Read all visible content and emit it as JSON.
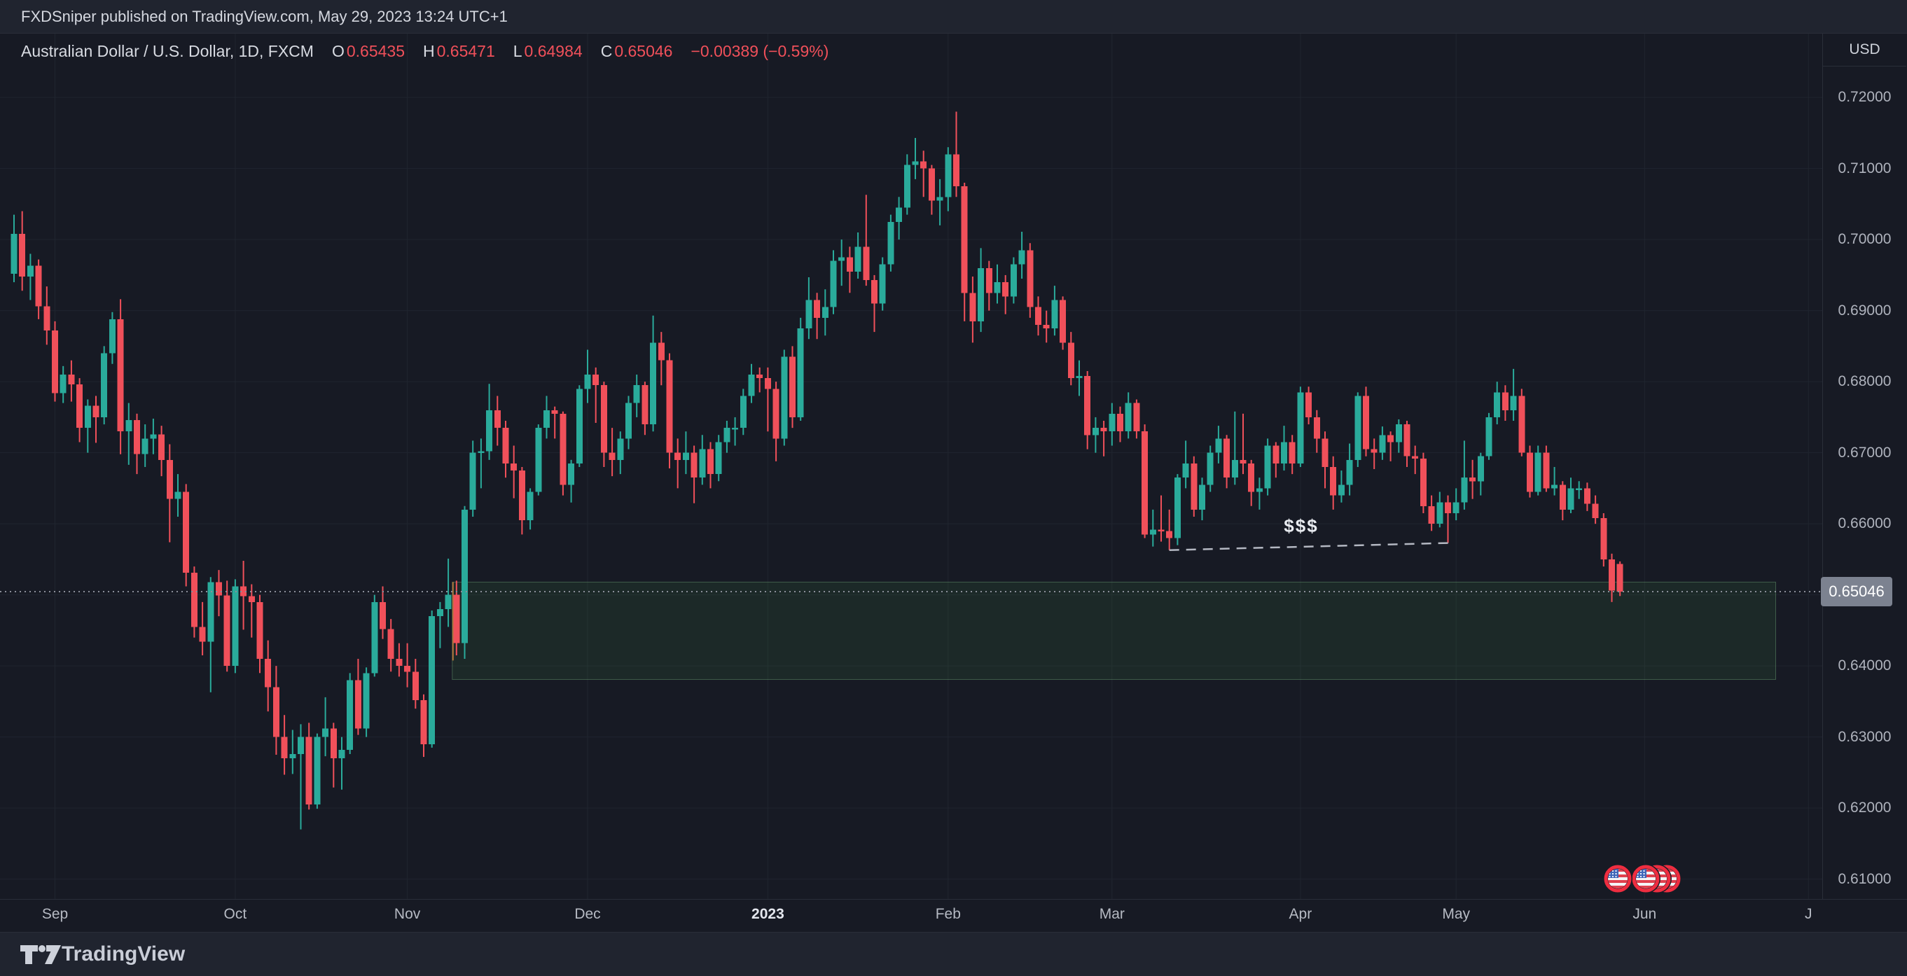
{
  "topbar": {
    "text": "FXDSniper published on TradingView.com, May 29, 2023 13:24 UTC+1"
  },
  "legend": {
    "title": "Australian Dollar / U.S. Dollar, 1D, FXCM",
    "o_label": "O",
    "o_value": "0.65435",
    "h_label": "H",
    "h_value": "0.65471",
    "l_label": "L",
    "l_value": "0.64984",
    "c_label": "C",
    "c_value": "0.65046",
    "change": "−0.00389 (−0.59%)"
  },
  "price_axis": {
    "currency_label": "USD",
    "ticks": [
      "0.72000",
      "0.71000",
      "0.70000",
      "0.69000",
      "0.68000",
      "0.67000",
      "0.66000",
      "0.65000",
      "0.64000",
      "0.63000",
      "0.62000",
      "0.61000"
    ],
    "last_price_label": "0.65046"
  },
  "time_axis": {
    "labels": [
      {
        "label": "Sep",
        "index": 5,
        "bold": false
      },
      {
        "label": "Oct",
        "index": 27,
        "bold": false
      },
      {
        "label": "Nov",
        "index": 48,
        "bold": false
      },
      {
        "label": "Dec",
        "index": 70,
        "bold": false
      },
      {
        "label": "2023",
        "index": 92,
        "bold": true
      },
      {
        "label": "Feb",
        "index": 114,
        "bold": false
      },
      {
        "label": "Mar",
        "index": 134,
        "bold": false
      },
      {
        "label": "Apr",
        "index": 157,
        "bold": false
      },
      {
        "label": "May",
        "index": 176,
        "bold": false
      },
      {
        "label": "Jun",
        "index": 199,
        "bold": false
      },
      {
        "label": "J",
        "index": 219,
        "bold": false
      }
    ]
  },
  "footer": {
    "brand": "TradingView"
  },
  "chart_data": {
    "type": "candlestick",
    "symbol": "Australian Dollar / U.S. Dollar",
    "timeframe": "1D",
    "exchange": "FXCM",
    "visible_range": [
      "Sep 2022",
      "Jun 2023"
    ],
    "ylim": [
      0.607,
      0.729
    ],
    "grid": true,
    "up_color": "#2aab9b",
    "down_color": "#f0505a",
    "price_line": 0.65046,
    "last_bar": {
      "open": 0.65435,
      "high": 0.65471,
      "low": 0.64984,
      "close": 0.65046,
      "change": -0.00389,
      "change_pct": -0.59
    },
    "ohlc": [
      [
        0.6952,
        0.7035,
        0.694,
        0.7008
      ],
      [
        0.7008,
        0.704,
        0.6928,
        0.6948
      ],
      [
        0.6948,
        0.698,
        0.6915,
        0.6963
      ],
      [
        0.6963,
        0.6972,
        0.6888,
        0.6906
      ],
      [
        0.6906,
        0.6934,
        0.6852,
        0.6872
      ],
      [
        0.6872,
        0.6885,
        0.6772,
        0.6784
      ],
      [
        0.6784,
        0.6822,
        0.677,
        0.681
      ],
      [
        0.681,
        0.683,
        0.6772,
        0.6796
      ],
      [
        0.6796,
        0.6805,
        0.6715,
        0.6735
      ],
      [
        0.6735,
        0.6775,
        0.67,
        0.6766
      ],
      [
        0.6766,
        0.678,
        0.6714,
        0.675
      ],
      [
        0.675,
        0.685,
        0.674,
        0.684
      ],
      [
        0.684,
        0.6898,
        0.6825,
        0.6888
      ],
      [
        0.6888,
        0.6916,
        0.6698,
        0.673
      ],
      [
        0.673,
        0.677,
        0.6683,
        0.6746
      ],
      [
        0.6746,
        0.6755,
        0.667,
        0.6698
      ],
      [
        0.6698,
        0.674,
        0.668,
        0.672
      ],
      [
        0.672,
        0.6748,
        0.6698,
        0.6726
      ],
      [
        0.6726,
        0.6738,
        0.6667,
        0.669
      ],
      [
        0.669,
        0.6712,
        0.6574,
        0.6635
      ],
      [
        0.6635,
        0.667,
        0.661,
        0.6645
      ],
      [
        0.6645,
        0.6656,
        0.6512,
        0.6531
      ],
      [
        0.6531,
        0.654,
        0.644,
        0.6455
      ],
      [
        0.6455,
        0.649,
        0.6415,
        0.6434
      ],
      [
        0.6434,
        0.6525,
        0.6363,
        0.6518
      ],
      [
        0.6518,
        0.6535,
        0.647,
        0.6499
      ],
      [
        0.6499,
        0.652,
        0.6392,
        0.64
      ],
      [
        0.64,
        0.6522,
        0.639,
        0.6512
      ],
      [
        0.6512,
        0.6548,
        0.6451,
        0.6498
      ],
      [
        0.6498,
        0.6515,
        0.644,
        0.649
      ],
      [
        0.649,
        0.65,
        0.639,
        0.641
      ],
      [
        0.641,
        0.6436,
        0.6336,
        0.637
      ],
      [
        0.637,
        0.64,
        0.6275,
        0.63
      ],
      [
        0.63,
        0.6331,
        0.6247,
        0.627
      ],
      [
        0.627,
        0.631,
        0.6248,
        0.6276
      ],
      [
        0.6276,
        0.6318,
        0.617,
        0.63
      ],
      [
        0.63,
        0.632,
        0.6198,
        0.6205
      ],
      [
        0.6205,
        0.6305,
        0.6199,
        0.63
      ],
      [
        0.63,
        0.6356,
        0.6273,
        0.6312
      ],
      [
        0.6312,
        0.632,
        0.6229,
        0.627
      ],
      [
        0.627,
        0.63,
        0.6226,
        0.6282
      ],
      [
        0.6282,
        0.639,
        0.6276,
        0.638
      ],
      [
        0.638,
        0.641,
        0.6303,
        0.6312
      ],
      [
        0.6312,
        0.6398,
        0.63,
        0.639
      ],
      [
        0.639,
        0.65,
        0.6385,
        0.649
      ],
      [
        0.649,
        0.6512,
        0.6438,
        0.6452
      ],
      [
        0.6452,
        0.6466,
        0.6392,
        0.641
      ],
      [
        0.641,
        0.6432,
        0.6385,
        0.64
      ],
      [
        0.64,
        0.6432,
        0.637,
        0.6392
      ],
      [
        0.6392,
        0.641,
        0.634,
        0.6352
      ],
      [
        0.6352,
        0.636,
        0.6272,
        0.629
      ],
      [
        0.629,
        0.6478,
        0.6285,
        0.647
      ],
      [
        0.647,
        0.649,
        0.6425,
        0.648
      ],
      [
        0.648,
        0.6551,
        0.6455,
        0.65
      ],
      [
        0.65,
        0.652,
        0.6415,
        0.6432
      ],
      [
        0.6432,
        0.6625,
        0.641,
        0.662
      ],
      [
        0.662,
        0.6717,
        0.661,
        0.67
      ],
      [
        0.67,
        0.672,
        0.665,
        0.6702
      ],
      [
        0.6702,
        0.6797,
        0.669,
        0.676
      ],
      [
        0.676,
        0.678,
        0.671,
        0.6735
      ],
      [
        0.6735,
        0.6745,
        0.6665,
        0.6685
      ],
      [
        0.6685,
        0.671,
        0.6636,
        0.6675
      ],
      [
        0.6675,
        0.668,
        0.6585,
        0.6605
      ],
      [
        0.6605,
        0.665,
        0.6592,
        0.6645
      ],
      [
        0.6645,
        0.674,
        0.664,
        0.6735
      ],
      [
        0.6735,
        0.678,
        0.672,
        0.676
      ],
      [
        0.676,
        0.6765,
        0.672,
        0.6755
      ],
      [
        0.6755,
        0.6758,
        0.664,
        0.6655
      ],
      [
        0.6655,
        0.669,
        0.663,
        0.6685
      ],
      [
        0.6685,
        0.6795,
        0.668,
        0.679
      ],
      [
        0.679,
        0.6845,
        0.677,
        0.681
      ],
      [
        0.681,
        0.682,
        0.6742,
        0.6795
      ],
      [
        0.6795,
        0.68,
        0.668,
        0.67
      ],
      [
        0.67,
        0.6735,
        0.6667,
        0.669
      ],
      [
        0.669,
        0.673,
        0.667,
        0.672
      ],
      [
        0.672,
        0.678,
        0.6705,
        0.677
      ],
      [
        0.677,
        0.681,
        0.675,
        0.6795
      ],
      [
        0.6795,
        0.68,
        0.6725,
        0.674
      ],
      [
        0.674,
        0.6893,
        0.673,
        0.6855
      ],
      [
        0.6855,
        0.687,
        0.6795,
        0.683
      ],
      [
        0.683,
        0.684,
        0.6678,
        0.67
      ],
      [
        0.67,
        0.672,
        0.665,
        0.669
      ],
      [
        0.669,
        0.673,
        0.667,
        0.67
      ],
      [
        0.67,
        0.671,
        0.6629,
        0.6665
      ],
      [
        0.6665,
        0.6725,
        0.6655,
        0.6705
      ],
      [
        0.6705,
        0.6715,
        0.665,
        0.667
      ],
      [
        0.667,
        0.6725,
        0.666,
        0.6715
      ],
      [
        0.6715,
        0.6745,
        0.67,
        0.6735
      ],
      [
        0.6735,
        0.675,
        0.671,
        0.6735
      ],
      [
        0.6735,
        0.679,
        0.6725,
        0.678
      ],
      [
        0.678,
        0.6825,
        0.677,
        0.681
      ],
      [
        0.681,
        0.682,
        0.6785,
        0.6805
      ],
      [
        0.6805,
        0.682,
        0.673,
        0.679
      ],
      [
        0.679,
        0.68,
        0.6688,
        0.672
      ],
      [
        0.672,
        0.6845,
        0.671,
        0.6835
      ],
      [
        0.6835,
        0.685,
        0.6735,
        0.675
      ],
      [
        0.675,
        0.689,
        0.6745,
        0.6875
      ],
      [
        0.6875,
        0.6947,
        0.686,
        0.6915
      ],
      [
        0.6915,
        0.6925,
        0.686,
        0.689
      ],
      [
        0.689,
        0.693,
        0.6865,
        0.6905
      ],
      [
        0.6905,
        0.6985,
        0.6895,
        0.697
      ],
      [
        0.697,
        0.7,
        0.6935,
        0.6975
      ],
      [
        0.6975,
        0.699,
        0.6925,
        0.6955
      ],
      [
        0.6955,
        0.701,
        0.6945,
        0.699
      ],
      [
        0.699,
        0.7063,
        0.6935,
        0.6943
      ],
      [
        0.6943,
        0.695,
        0.687,
        0.691
      ],
      [
        0.691,
        0.6975,
        0.69,
        0.6965
      ],
      [
        0.6965,
        0.7035,
        0.6955,
        0.7025
      ],
      [
        0.7025,
        0.706,
        0.7,
        0.7045
      ],
      [
        0.7045,
        0.712,
        0.7035,
        0.7105
      ],
      [
        0.7105,
        0.7143,
        0.7085,
        0.711
      ],
      [
        0.711,
        0.7125,
        0.706,
        0.71
      ],
      [
        0.71,
        0.7105,
        0.7035,
        0.7055
      ],
      [
        0.7055,
        0.7085,
        0.702,
        0.706
      ],
      [
        0.706,
        0.713,
        0.704,
        0.712
      ],
      [
        0.712,
        0.718,
        0.706,
        0.7075
      ],
      [
        0.7075,
        0.708,
        0.6885,
        0.6925
      ],
      [
        0.6925,
        0.6948,
        0.6855,
        0.6885
      ],
      [
        0.6885,
        0.6988,
        0.687,
        0.696
      ],
      [
        0.696,
        0.697,
        0.69,
        0.6925
      ],
      [
        0.6925,
        0.6965,
        0.691,
        0.694
      ],
      [
        0.694,
        0.695,
        0.6895,
        0.692
      ],
      [
        0.692,
        0.6975,
        0.691,
        0.6965
      ],
      [
        0.6965,
        0.7011,
        0.6945,
        0.6985
      ],
      [
        0.6985,
        0.6995,
        0.689,
        0.6905
      ],
      [
        0.6905,
        0.692,
        0.6865,
        0.688
      ],
      [
        0.688,
        0.69,
        0.6855,
        0.6875
      ],
      [
        0.6875,
        0.6935,
        0.6865,
        0.6915
      ],
      [
        0.6915,
        0.692,
        0.6845,
        0.6855
      ],
      [
        0.6855,
        0.687,
        0.6795,
        0.6805
      ],
      [
        0.6805,
        0.683,
        0.678,
        0.6808
      ],
      [
        0.6808,
        0.6815,
        0.6705,
        0.6725
      ],
      [
        0.6725,
        0.675,
        0.67,
        0.6735
      ],
      [
        0.6735,
        0.6745,
        0.6695,
        0.673
      ],
      [
        0.673,
        0.677,
        0.671,
        0.6755
      ],
      [
        0.6755,
        0.6765,
        0.6715,
        0.673
      ],
      [
        0.673,
        0.6785,
        0.672,
        0.677
      ],
      [
        0.677,
        0.6775,
        0.672,
        0.673
      ],
      [
        0.673,
        0.674,
        0.658,
        0.6585
      ],
      [
        0.6585,
        0.662,
        0.6568,
        0.6592
      ],
      [
        0.6592,
        0.664,
        0.6575,
        0.659
      ],
      [
        0.659,
        0.662,
        0.6563,
        0.658
      ],
      [
        0.658,
        0.667,
        0.657,
        0.6665
      ],
      [
        0.6665,
        0.6717,
        0.665,
        0.6685
      ],
      [
        0.6685,
        0.6695,
        0.661,
        0.662
      ],
      [
        0.662,
        0.6665,
        0.6605,
        0.6655
      ],
      [
        0.6655,
        0.671,
        0.6645,
        0.67
      ],
      [
        0.67,
        0.6738,
        0.6685,
        0.672
      ],
      [
        0.672,
        0.6725,
        0.665,
        0.6665
      ],
      [
        0.6665,
        0.6758,
        0.6655,
        0.669
      ],
      [
        0.669,
        0.6755,
        0.667,
        0.6685
      ],
      [
        0.6685,
        0.669,
        0.6625,
        0.6645
      ],
      [
        0.6645,
        0.6665,
        0.662,
        0.665
      ],
      [
        0.665,
        0.672,
        0.664,
        0.671
      ],
      [
        0.671,
        0.6715,
        0.6665,
        0.6685
      ],
      [
        0.6685,
        0.6738,
        0.6675,
        0.6715
      ],
      [
        0.6715,
        0.6725,
        0.667,
        0.6685
      ],
      [
        0.6685,
        0.6793,
        0.668,
        0.6785
      ],
      [
        0.6785,
        0.6793,
        0.674,
        0.675
      ],
      [
        0.675,
        0.676,
        0.67,
        0.672
      ],
      [
        0.672,
        0.673,
        0.665,
        0.668
      ],
      [
        0.668,
        0.6695,
        0.662,
        0.664
      ],
      [
        0.664,
        0.6675,
        0.663,
        0.6655
      ],
      [
        0.6655,
        0.6713,
        0.664,
        0.669
      ],
      [
        0.669,
        0.6785,
        0.668,
        0.678
      ],
      [
        0.678,
        0.6793,
        0.6695,
        0.6705
      ],
      [
        0.6705,
        0.672,
        0.6677,
        0.67
      ],
      [
        0.67,
        0.6737,
        0.669,
        0.6725
      ],
      [
        0.6725,
        0.673,
        0.6688,
        0.6715
      ],
      [
        0.6715,
        0.6747,
        0.67,
        0.674
      ],
      [
        0.674,
        0.6745,
        0.668,
        0.6695
      ],
      [
        0.6695,
        0.671,
        0.667,
        0.6692
      ],
      [
        0.6692,
        0.67,
        0.6615,
        0.6625
      ],
      [
        0.6625,
        0.664,
        0.659,
        0.66
      ],
      [
        0.66,
        0.6645,
        0.6595,
        0.663
      ],
      [
        0.663,
        0.664,
        0.6573,
        0.6615
      ],
      [
        0.6615,
        0.665,
        0.6605,
        0.663
      ],
      [
        0.663,
        0.6717,
        0.662,
        0.6665
      ],
      [
        0.6665,
        0.669,
        0.6635,
        0.666
      ],
      [
        0.666,
        0.67,
        0.664,
        0.6695
      ],
      [
        0.6695,
        0.6756,
        0.669,
        0.675
      ],
      [
        0.675,
        0.68,
        0.674,
        0.6785
      ],
      [
        0.6785,
        0.6795,
        0.6745,
        0.676
      ],
      [
        0.676,
        0.6818,
        0.6745,
        0.678
      ],
      [
        0.678,
        0.679,
        0.6695,
        0.67
      ],
      [
        0.67,
        0.671,
        0.6637,
        0.6645
      ],
      [
        0.6645,
        0.671,
        0.664,
        0.67
      ],
      [
        0.67,
        0.671,
        0.6645,
        0.665
      ],
      [
        0.665,
        0.668,
        0.664,
        0.6655
      ],
      [
        0.6655,
        0.666,
        0.6605,
        0.662
      ],
      [
        0.662,
        0.6665,
        0.6615,
        0.665
      ],
      [
        0.665,
        0.666,
        0.6635,
        0.665
      ],
      [
        0.665,
        0.6658,
        0.6618,
        0.6628
      ],
      [
        0.6628,
        0.664,
        0.66,
        0.6608
      ],
      [
        0.6608,
        0.6615,
        0.654,
        0.655
      ],
      [
        0.655,
        0.6558,
        0.649,
        0.6506
      ],
      [
        0.65435,
        0.65471,
        0.64984,
        0.65046
      ]
    ],
    "annotations": {
      "supply_zone": {
        "from_index": 54,
        "to_index": 215,
        "price_top": 0.6518,
        "price_bottom": 0.6381,
        "fill_color": "rgba(76,175,80,0.10)",
        "border_color": "rgba(134,204,140,0.35)"
      },
      "dollar_trendline": {
        "label": "$$$",
        "style": "dashed",
        "color": "#b4b8c2",
        "from": {
          "index": 141,
          "price": 0.6563
        },
        "to": {
          "index": 175,
          "price": 0.6573
        }
      },
      "event_flags": {
        "count": 4,
        "description": "US flag economic event markers"
      }
    }
  }
}
